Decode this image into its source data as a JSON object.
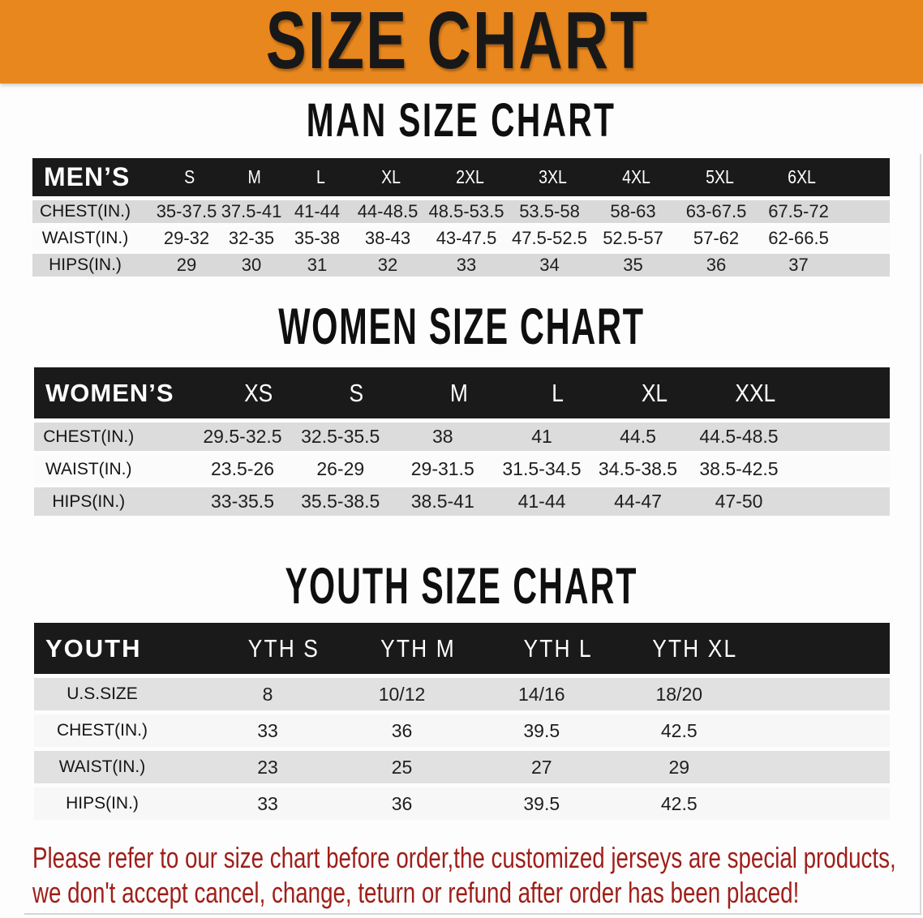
{
  "banner": {
    "title": "SIZE CHART",
    "bg_color": "#E8871E"
  },
  "sections": [
    {
      "id": "men",
      "heading": "MAN SIZE CHART",
      "table": {
        "header_label": "MEN’S",
        "columns": [
          "S",
          "M",
          "L",
          "XL",
          "2XL",
          "3XL",
          "4XL",
          "5XL",
          "6XL"
        ],
        "rows": [
          {
            "label": "CHEST(IN.)",
            "values": [
              "35-37.5",
              "37.5-41",
              "41-44",
              "44-48.5",
              "48.5-53.5",
              "53.5-58",
              "58-63",
              "63-67.5",
              "67.5-72"
            ]
          },
          {
            "label": "WAIST(IN.)",
            "values": [
              "29-32",
              "32-35",
              "35-38",
              "38-43",
              "43-47.5",
              "47.5-52.5",
              "52.5-57",
              "57-62",
              "62-66.5"
            ]
          },
          {
            "label": "HIPS(IN.)",
            "values": [
              "29",
              "30",
              "31",
              "32",
              "33",
              "34",
              "35",
              "36",
              "37"
            ]
          }
        ]
      }
    },
    {
      "id": "women",
      "heading": "WOMEN SIZE CHART",
      "table": {
        "header_label": "WOMEN’S",
        "columns": [
          "XS",
          "S",
          "M",
          "L",
          "XL",
          "XXL"
        ],
        "rows": [
          {
            "label": "CHEST(IN.)",
            "values": [
              "29.5-32.5",
              "32.5-35.5",
              "38",
              "41",
              "44.5",
              "44.5-48.5"
            ]
          },
          {
            "label": "WAIST(IN.)",
            "values": [
              "23.5-26",
              "26-29",
              "29-31.5",
              "31.5-34.5",
              "34.5-38.5",
              "38.5-42.5"
            ]
          },
          {
            "label": "HIPS(IN.)",
            "values": [
              "33-35.5",
              "35.5-38.5",
              "38.5-41",
              "41-44",
              "44-47",
              "47-50"
            ]
          }
        ]
      }
    },
    {
      "id": "youth",
      "heading": "YOUTH SIZE CHART",
      "table": {
        "header_label": "YOUTH",
        "columns": [
          "YTH S",
          "YTH M",
          "YTH L",
          "YTH XL"
        ],
        "rows": [
          {
            "label": "U.S.SIZE",
            "values": [
              "8",
              "10/12",
              "14/16",
              "18/20"
            ]
          },
          {
            "label": "CHEST(IN.)",
            "values": [
              "33",
              "36",
              "39.5",
              "42.5"
            ]
          },
          {
            "label": "WAIST(IN.)",
            "values": [
              "23",
              "25",
              "27",
              "29"
            ]
          },
          {
            "label": "HIPS(IN.)",
            "values": [
              "33",
              "36",
              "39.5",
              "42.5"
            ]
          }
        ]
      }
    }
  ],
  "notice": {
    "line1": "Please refer to our size chart before order,the customized jerseys are special products,",
    "line2": "we don't accept cancel, change, teturn or refund after order has been placed!",
    "color": "#9E1F1A"
  }
}
